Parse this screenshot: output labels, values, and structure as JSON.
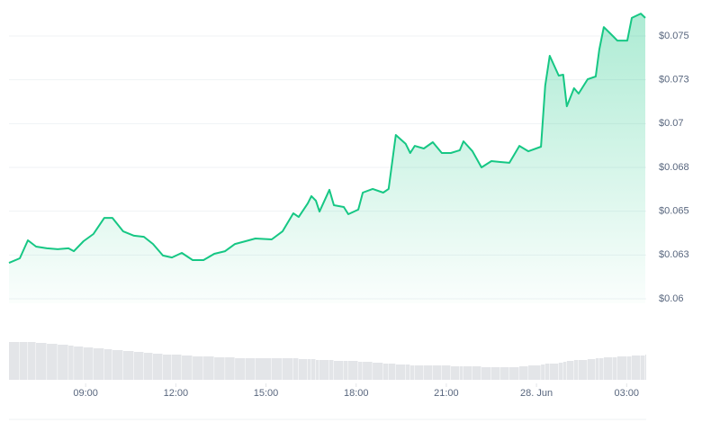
{
  "chart_data": {
    "type": "line",
    "color": "#16c784",
    "volume_color": "#e3e5e8",
    "grid": true,
    "xlim": [
      6.45,
      27.65
    ],
    "ylim": [
      0.06,
      0.0765
    ],
    "xticks": [
      {
        "value": 9,
        "label": "09:00"
      },
      {
        "value": 12,
        "label": "12:00"
      },
      {
        "value": 15,
        "label": "15:00"
      },
      {
        "value": 18,
        "label": "18:00"
      },
      {
        "value": 21,
        "label": "21:00"
      },
      {
        "value": 24,
        "label": "28. Jun"
      },
      {
        "value": 27,
        "label": "03:00"
      }
    ],
    "yticks": [
      {
        "value": 0.06,
        "label": "$0.06"
      },
      {
        "value": 0.0625,
        "label": "$0.063"
      },
      {
        "value": 0.065,
        "label": "$0.065"
      },
      {
        "value": 0.0675,
        "label": "$0.068"
      },
      {
        "value": 0.07,
        "label": "$0.07"
      },
      {
        "value": 0.0725,
        "label": "$0.073"
      },
      {
        "value": 0.075,
        "label": "$0.075"
      }
    ],
    "x": [
      6.45,
      6.81,
      7.08,
      7.35,
      7.71,
      8.07,
      8.43,
      8.61,
      8.93,
      9.26,
      9.62,
      9.89,
      10.25,
      10.61,
      10.94,
      11.24,
      11.57,
      11.87,
      12.2,
      12.56,
      12.92,
      13.28,
      13.64,
      13.97,
      14.32,
      14.65,
      15.19,
      15.55,
      15.91,
      16.09,
      16.39,
      16.51,
      16.66,
      16.78,
      17.11,
      17.26,
      17.59,
      17.74,
      18.07,
      18.22,
      18.55,
      18.9,
      19.08,
      19.32,
      19.65,
      19.8,
      19.95,
      20.25,
      20.55,
      20.85,
      21.15,
      21.45,
      21.57,
      21.87,
      22.17,
      22.5,
      22.8,
      23.1,
      23.43,
      23.73,
      24.15,
      24.29,
      24.44,
      24.74,
      24.89,
      25.01,
      25.25,
      25.4,
      25.7,
      25.97,
      26.09,
      26.24,
      26.54,
      26.69,
      27.02,
      27.17,
      27.47,
      27.62
    ],
    "series": [
      {
        "values": [
          0.06205,
          0.06231,
          0.06334,
          0.06298,
          0.06288,
          0.06283,
          0.06288,
          0.06272,
          0.06329,
          0.0637,
          0.06462,
          0.06462,
          0.06385,
          0.0636,
          0.06354,
          0.06313,
          0.06247,
          0.06236,
          0.06262,
          0.06221,
          0.06221,
          0.06257,
          0.06272,
          0.06313,
          0.06329,
          0.06344,
          0.06339,
          0.06385,
          0.06488,
          0.06467,
          0.06545,
          0.06586,
          0.0656,
          0.06498,
          0.06622,
          0.06534,
          0.06524,
          0.06483,
          0.06509,
          0.06606,
          0.06627,
          0.06606,
          0.06627,
          0.06935,
          0.06884,
          0.06832,
          0.06873,
          0.06858,
          0.06894,
          0.06832,
          0.06832,
          0.06848,
          0.06899,
          0.06842,
          0.0675,
          0.06786,
          0.06781,
          0.06776,
          0.06873,
          0.06842,
          0.06868,
          0.07217,
          0.07387,
          0.07274,
          0.07279,
          0.07099,
          0.07202,
          0.07171,
          0.07253,
          0.07269,
          0.07423,
          0.07551,
          0.075,
          0.07474,
          0.07474,
          0.07603,
          0.07628,
          0.07603
        ]
      }
    ],
    "volume": [
      42,
      42,
      42,
      41,
      40,
      39,
      38,
      37,
      36,
      35,
      34,
      33,
      32,
      31,
      30,
      29,
      28,
      28,
      27,
      26,
      26,
      25,
      25,
      24,
      24,
      24,
      24,
      24,
      24,
      23,
      23,
      23,
      22,
      22,
      22,
      21,
      21,
      21,
      20,
      20,
      19,
      18,
      18,
      17,
      17,
      16,
      16,
      16,
      16,
      16,
      15,
      15,
      15,
      15,
      14,
      14,
      14,
      14,
      15,
      16,
      17,
      18,
      18,
      19,
      20,
      21,
      22,
      22,
      23,
      24,
      24,
      25,
      25,
      26,
      26,
      27,
      27,
      28
    ]
  }
}
